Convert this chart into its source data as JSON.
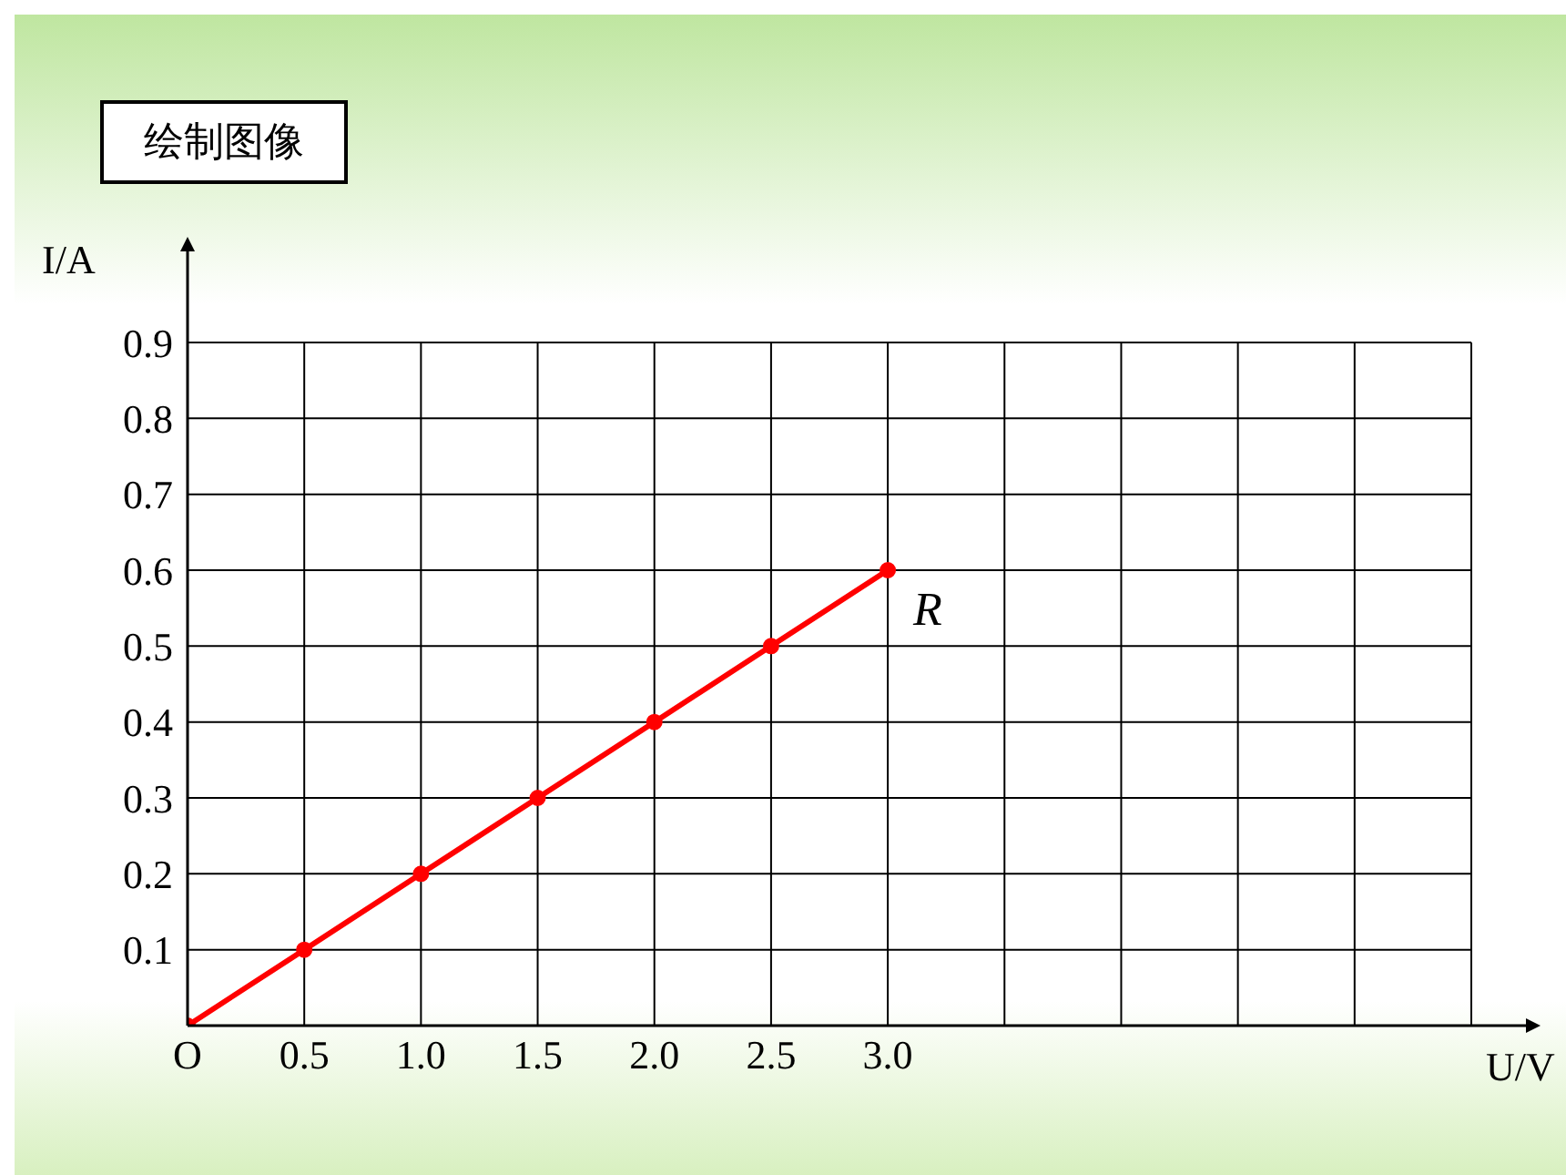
{
  "chart_data": {
    "type": "line",
    "title": "绘制图像",
    "xlabel": "U/V",
    "ylabel": "I/A",
    "x": [
      0,
      0.5,
      1.0,
      1.5,
      2.0,
      2.5,
      3.0
    ],
    "series": [
      {
        "name": "R",
        "color": "#ff0000",
        "values": [
          0,
          0.1,
          0.2,
          0.3,
          0.4,
          0.5,
          0.6
        ]
      }
    ],
    "xlim": [
      0,
      5.5
    ],
    "xticks": [
      {
        "value": 0,
        "label": "O"
      },
      0.5,
      {
        "value": 1,
        "label": "1.0"
      },
      1.5,
      {
        "value": 2,
        "label": "2.0"
      },
      2.5,
      {
        "value": 3,
        "label": "3.0"
      },
      {
        "value": 3.5,
        "label": null
      },
      {
        "value": 4,
        "label": null
      },
      {
        "value": 4.5,
        "label": null
      },
      {
        "value": 5,
        "label": null
      },
      {
        "value": 5.5,
        "label": null
      }
    ],
    "ylim": [
      0,
      0.9
    ],
    "yticks": [
      0.1,
      0.2,
      0.3,
      0.4,
      0.5,
      0.6,
      0.7,
      0.8,
      0.9
    ],
    "grid": true,
    "marker": "circle",
    "line_style": "solid",
    "legend": false
  }
}
